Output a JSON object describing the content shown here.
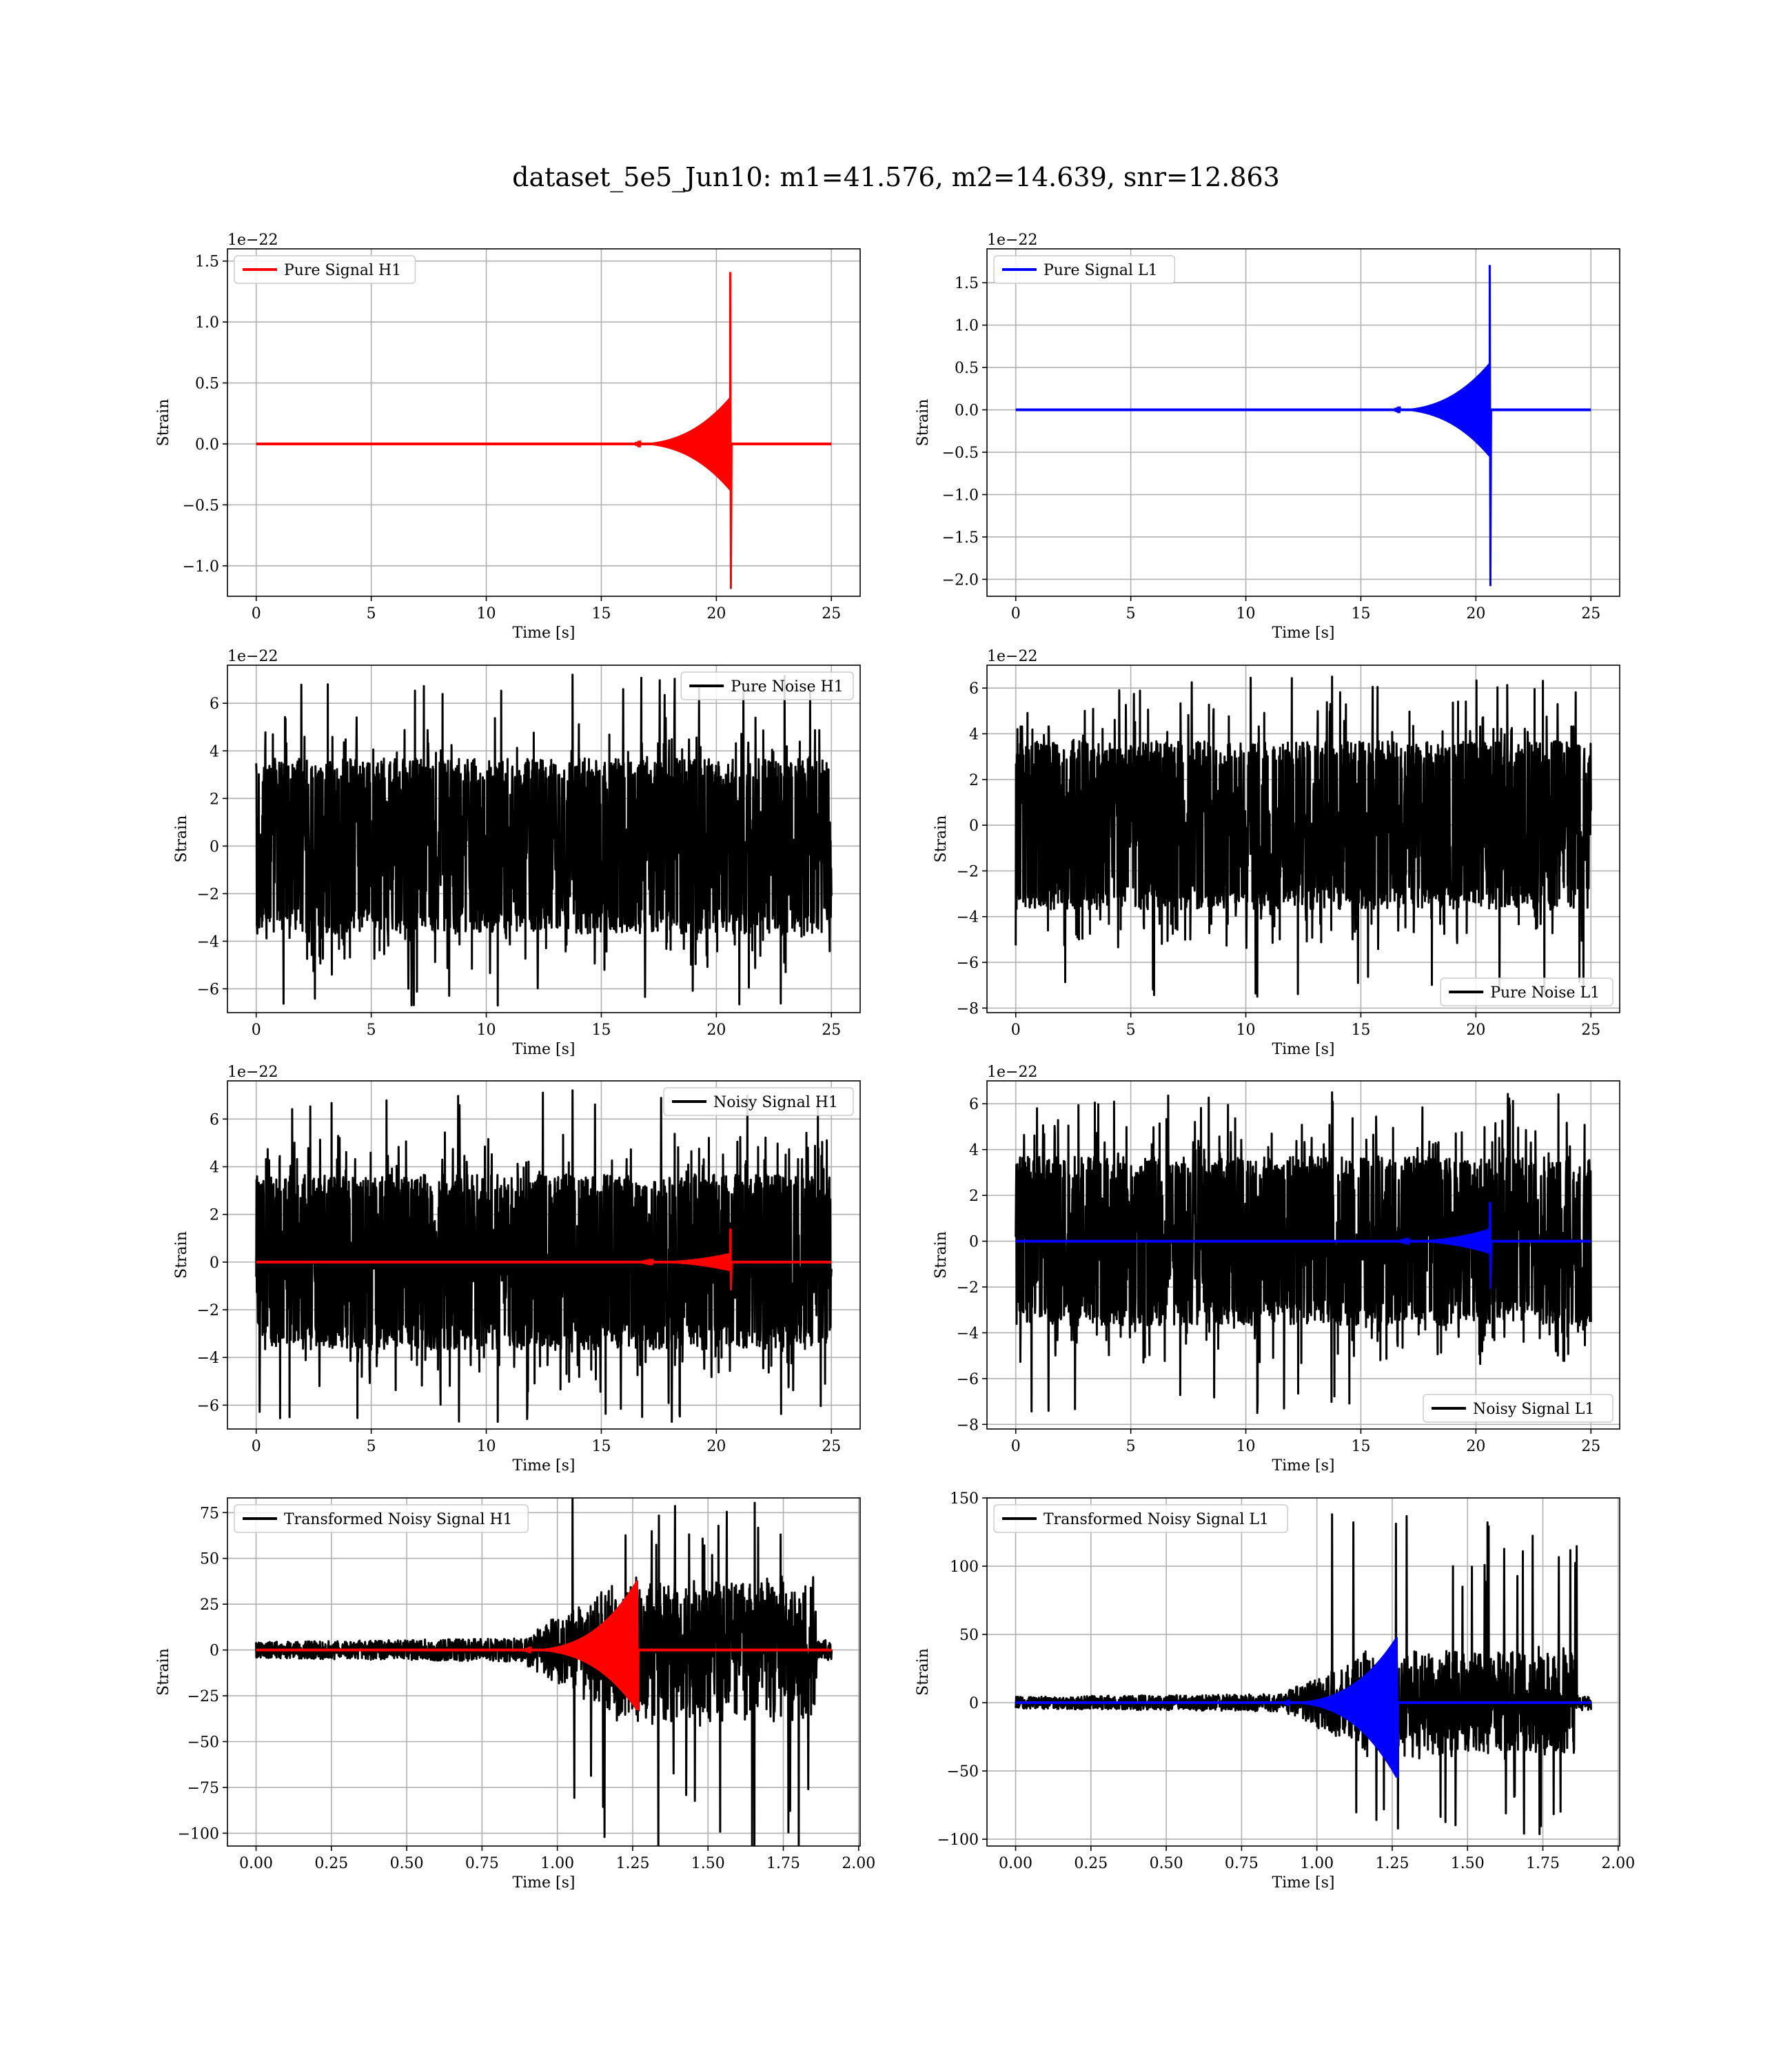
{
  "figure": {
    "title": "dataset_5e5_Jun10: m1=41.576, m2=14.639, snr=12.863",
    "colors": {
      "h1_signal": "#ff0000",
      "l1_signal": "#0000ff",
      "noise": "#000000",
      "grid": "#b0b0b0"
    }
  },
  "chart_data": [
    {
      "id": "pure-signal-h1",
      "type": "line",
      "kind": "chirp",
      "legend": [
        "Pure Signal H1"
      ],
      "legend_position": "upper left",
      "xlabel": "Time [s]",
      "ylabel": "Strain",
      "offset_text": "1e−22",
      "xlim": [
        -1.25,
        26.25
      ],
      "ylim": [
        -1.25,
        1.6
      ],
      "xticks": [
        0,
        5,
        10,
        15,
        20,
        25
      ],
      "xtick_labels": [
        "0",
        "5",
        "10",
        "15",
        "20",
        "25"
      ],
      "yticks": [
        -1.0,
        -0.5,
        0.0,
        0.5,
        1.0,
        1.5
      ],
      "ytick_labels": [
        "−1.0",
        "−0.5",
        "0.0",
        "0.5",
        "1.0",
        "1.5"
      ],
      "grid": true,
      "series": [
        {
          "name": "Pure Signal H1",
          "color": "#ff0000",
          "role": "signal",
          "x_range": [
            0,
            25
          ],
          "merger_time": 20.6,
          "peak_max": 1.41,
          "peak_min": -1.19,
          "envelope_near_merger": 0.38
        }
      ]
    },
    {
      "id": "pure-signal-l1",
      "type": "line",
      "kind": "chirp",
      "legend": [
        "Pure Signal L1"
      ],
      "legend_position": "upper left",
      "xlabel": "Time [s]",
      "ylabel": "Strain",
      "offset_text": "1e−22",
      "xlim": [
        -1.25,
        26.25
      ],
      "ylim": [
        -2.2,
        1.9
      ],
      "xticks": [
        0,
        5,
        10,
        15,
        20,
        25
      ],
      "xtick_labels": [
        "0",
        "5",
        "10",
        "15",
        "20",
        "25"
      ],
      "yticks": [
        -2.0,
        -1.5,
        -1.0,
        -0.5,
        0.0,
        0.5,
        1.0,
        1.5
      ],
      "ytick_labels": [
        "−2.0",
        "−1.5",
        "−1.0",
        "−0.5",
        "0.0",
        "0.5",
        "1.0",
        "1.5"
      ],
      "grid": true,
      "series": [
        {
          "name": "Pure Signal L1",
          "color": "#0000ff",
          "role": "signal",
          "x_range": [
            0,
            25
          ],
          "merger_time": 20.6,
          "peak_max": 1.71,
          "peak_min": -2.08,
          "envelope_near_merger": 0.55
        }
      ]
    },
    {
      "id": "pure-noise-h1",
      "type": "line",
      "kind": "noise",
      "legend": [
        "Pure Noise H1"
      ],
      "legend_position": "upper right",
      "xlabel": "Time [s]",
      "ylabel": "Strain",
      "offset_text": "1e−22",
      "xlim": [
        -1.25,
        26.25
      ],
      "ylim": [
        -7.0,
        7.6
      ],
      "xticks": [
        0,
        5,
        10,
        15,
        20,
        25
      ],
      "xtick_labels": [
        "0",
        "5",
        "10",
        "15",
        "20",
        "25"
      ],
      "yticks": [
        -6,
        -4,
        -2,
        0,
        2,
        4,
        6
      ],
      "ytick_labels": [
        "−6",
        "−4",
        "−2",
        "0",
        "2",
        "4",
        "6"
      ],
      "grid": true,
      "series": [
        {
          "name": "Pure Noise H1",
          "color": "#000000",
          "role": "noise",
          "x_range": [
            0,
            25
          ],
          "band": 3.2,
          "spike_max": 7.2,
          "spike_min": -6.7
        }
      ]
    },
    {
      "id": "pure-noise-l1",
      "type": "line",
      "kind": "noise",
      "legend": [
        "Pure Noise L1"
      ],
      "legend_position": "lower right",
      "xlabel": "Time [s]",
      "ylabel": "Strain",
      "offset_text": "1e−22",
      "xlim": [
        -1.25,
        26.25
      ],
      "ylim": [
        -8.2,
        7.0
      ],
      "xticks": [
        0,
        5,
        10,
        15,
        20,
        25
      ],
      "xtick_labels": [
        "0",
        "5",
        "10",
        "15",
        "20",
        "25"
      ],
      "yticks": [
        -8,
        -6,
        -4,
        -2,
        0,
        2,
        4,
        6
      ],
      "ytick_labels": [
        "−8",
        "−6",
        "−4",
        "−2",
        "0",
        "2",
        "4",
        "6"
      ],
      "grid": true,
      "series": [
        {
          "name": "Pure Noise L1",
          "color": "#000000",
          "role": "noise",
          "x_range": [
            0,
            25
          ],
          "band": 3.2,
          "spike_max": 6.5,
          "spike_min": -7.5
        }
      ]
    },
    {
      "id": "noisy-signal-h1",
      "type": "line",
      "kind": "noisy",
      "legend": [
        "Noisy Signal H1"
      ],
      "legend_position": "upper right",
      "xlabel": "Time [s]",
      "ylabel": "Strain",
      "offset_text": "1e−22",
      "xlim": [
        -1.25,
        26.25
      ],
      "ylim": [
        -7.0,
        7.6
      ],
      "xticks": [
        0,
        5,
        10,
        15,
        20,
        25
      ],
      "xtick_labels": [
        "0",
        "5",
        "10",
        "15",
        "20",
        "25"
      ],
      "yticks": [
        -6,
        -4,
        -2,
        0,
        2,
        4,
        6
      ],
      "ytick_labels": [
        "−6",
        "−4",
        "−2",
        "0",
        "2",
        "4",
        "6"
      ],
      "grid": true,
      "series": [
        {
          "name": "Noisy Signal H1",
          "color": "#000000",
          "role": "noise",
          "x_range": [
            0,
            25
          ],
          "band": 3.2,
          "spike_max": 7.2,
          "spike_min": -6.7
        },
        {
          "color": "#ff0000",
          "role": "signal",
          "x_range": [
            0,
            25
          ],
          "merger_time": 20.6,
          "peak_max": 1.41,
          "peak_min": -1.19,
          "envelope_near_merger": 0.38
        }
      ]
    },
    {
      "id": "noisy-signal-l1",
      "type": "line",
      "kind": "noisy",
      "legend": [
        "Noisy Signal L1"
      ],
      "legend_position": "lower right",
      "xlabel": "Time [s]",
      "ylabel": "Strain",
      "offset_text": "1e−22",
      "xlim": [
        -1.25,
        26.25
      ],
      "ylim": [
        -8.2,
        7.0
      ],
      "xticks": [
        0,
        5,
        10,
        15,
        20,
        25
      ],
      "xtick_labels": [
        "0",
        "5",
        "10",
        "15",
        "20",
        "25"
      ],
      "yticks": [
        -8,
        -6,
        -4,
        -2,
        0,
        2,
        4,
        6
      ],
      "ytick_labels": [
        "−8",
        "−6",
        "−4",
        "−2",
        "0",
        "2",
        "4",
        "6"
      ],
      "grid": true,
      "series": [
        {
          "name": "Noisy Signal L1",
          "color": "#000000",
          "role": "noise",
          "x_range": [
            0,
            25
          ],
          "band": 3.2,
          "spike_max": 6.5,
          "spike_min": -7.5
        },
        {
          "color": "#0000ff",
          "role": "signal",
          "x_range": [
            0,
            25
          ],
          "merger_time": 20.6,
          "peak_max": 1.71,
          "peak_min": -2.08,
          "envelope_near_merger": 0.55
        }
      ]
    },
    {
      "id": "transformed-noisy-signal-h1",
      "type": "line",
      "kind": "transformed",
      "legend": [
        "Transformed Noisy Signal H1"
      ],
      "legend_position": "upper left",
      "xlabel": "Time [s]",
      "ylabel": "Strain",
      "offset_text": "",
      "xlim": [
        -0.095,
        2.005
      ],
      "ylim": [
        -107,
        83
      ],
      "xticks": [
        0,
        0.25,
        0.5,
        0.75,
        1.0,
        1.25,
        1.5,
        1.75,
        2.0
      ],
      "xtick_labels": [
        "0.00",
        "0.25",
        "0.50",
        "0.75",
        "1.00",
        "1.25",
        "1.50",
        "1.75",
        "2.00"
      ],
      "yticks": [
        -100,
        -75,
        -50,
        -25,
        0,
        25,
        50,
        75
      ],
      "ytick_labels": [
        "−100",
        "−75",
        "−50",
        "−25",
        "0",
        "25",
        "50",
        "75"
      ],
      "grid": true,
      "series": [
        {
          "name": "Transformed Noisy Signal H1",
          "color": "#000000",
          "role": "noise",
          "x_range": [
            0,
            1.91
          ],
          "spike_max": 83,
          "spike_min": -110
        },
        {
          "color": "#ff0000",
          "role": "signal",
          "x_range": [
            0,
            1.91
          ],
          "merger_time": 1.265,
          "peak_max": 38,
          "peak_min": -33
        }
      ]
    },
    {
      "id": "transformed-noisy-signal-l1",
      "type": "line",
      "kind": "transformed",
      "legend": [
        "Transformed Noisy Signal L1"
      ],
      "legend_position": "upper left",
      "xlabel": "Time [s]",
      "ylabel": "Strain",
      "offset_text": "",
      "xlim": [
        -0.095,
        2.005
      ],
      "ylim": [
        -105,
        150
      ],
      "xticks": [
        0,
        0.25,
        0.5,
        0.75,
        1.0,
        1.25,
        1.5,
        1.75,
        2.0
      ],
      "xtick_labels": [
        "0.00",
        "0.25",
        "0.50",
        "0.75",
        "1.00",
        "1.25",
        "1.50",
        "1.75",
        "2.00"
      ],
      "yticks": [
        -100,
        -50,
        0,
        50,
        100,
        150
      ],
      "ytick_labels": [
        "−100",
        "−50",
        "0",
        "50",
        "100",
        "150"
      ],
      "grid": true,
      "series": [
        {
          "name": "Transformed Noisy Signal L1",
          "color": "#000000",
          "role": "noise",
          "x_range": [
            0,
            1.91
          ],
          "spike_max": 138,
          "spike_min": -98
        },
        {
          "color": "#0000ff",
          "role": "signal",
          "x_range": [
            0,
            1.91
          ],
          "merger_time": 1.265,
          "peak_max": 48,
          "peak_min": -55
        }
      ]
    }
  ]
}
